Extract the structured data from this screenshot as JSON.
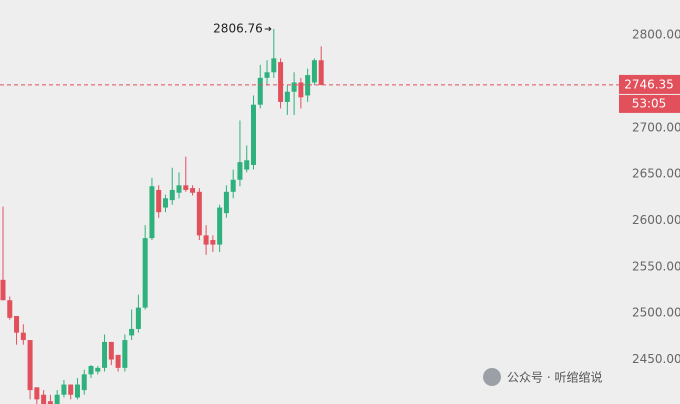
{
  "chart_data": {
    "type": "candlestick",
    "open": [
      2536,
      2514,
      2497,
      2479,
      2471,
      2420,
      2412,
      2405,
      2402,
      2412,
      2423,
      2409,
      2417,
      2434,
      2437,
      2441,
      2469,
      2455,
      2441,
      2476,
      2483,
      2506,
      2581,
      2633,
      2614,
      2622,
      2630,
      2638,
      2635,
      2631,
      2584,
      2579,
      2574,
      2608,
      2631,
      2644,
      2655,
      2660,
      2725,
      2754,
      2760,
      2771,
      2728,
      2739,
      2749,
      2735,
      2749,
      2773
    ],
    "high": [
      2615,
      2518,
      2497,
      2488,
      2471,
      2420,
      2417,
      2412,
      2417,
      2428,
      2423,
      2430,
      2439,
      2444,
      2443,
      2477,
      2469,
      2455,
      2477,
      2504,
      2520,
      2595,
      2646,
      2638,
      2628,
      2657,
      2652,
      2669,
      2638,
      2635,
      2595,
      2584,
      2617,
      2638,
      2655,
      2708,
      2681,
      2735,
      2768,
      2773,
      2806.76,
      2775,
      2746,
      2760,
      2754,
      2764,
      2775,
      2788
    ],
    "low": [
      2514,
      2493,
      2466,
      2466,
      2407,
      2402,
      2402,
      2402,
      2402,
      2409,
      2407,
      2407,
      2412,
      2430,
      2434,
      2437,
      2444,
      2437,
      2437,
      2471,
      2479,
      2504,
      2579,
      2603,
      2609,
      2617,
      2624,
      2631,
      2627,
      2579,
      2563,
      2566,
      2566,
      2603,
      2624,
      2637,
      2652,
      2655,
      2721,
      2746,
      2754,
      2721,
      2714,
      2714,
      2721,
      2728,
      2746,
      2746
    ],
    "close": [
      2514,
      2495,
      2479,
      2471,
      2417,
      2407,
      2402,
      2402,
      2412,
      2423,
      2412,
      2423,
      2434,
      2443,
      2441,
      2469,
      2450,
      2441,
      2471,
      2483,
      2506,
      2581,
      2637,
      2609,
      2624,
      2633,
      2638,
      2633,
      2630,
      2584,
      2574,
      2574,
      2614,
      2631,
      2644,
      2663,
      2665,
      2725,
      2754,
      2760,
      2775,
      2728,
      2739,
      2749,
      2733,
      2757,
      2773,
      2746.35
    ],
    "up_color": "#2eb17d",
    "down_color": "#e2505c",
    "ylim": [
      2402,
      2838
    ],
    "yticks": [
      {
        "value": 2450,
        "label": "2450.00"
      },
      {
        "value": 2500,
        "label": "2500.00"
      },
      {
        "value": 2550,
        "label": "2550.00"
      },
      {
        "value": 2600,
        "label": "2600.00"
      },
      {
        "value": 2650,
        "label": "2650.00"
      },
      {
        "value": 2700,
        "label": "2700.00"
      },
      {
        "value": 2800,
        "label": "2800.00"
      }
    ],
    "countdown": "53:05",
    "watermark": "公众号 · 听绾绾说"
  }
}
